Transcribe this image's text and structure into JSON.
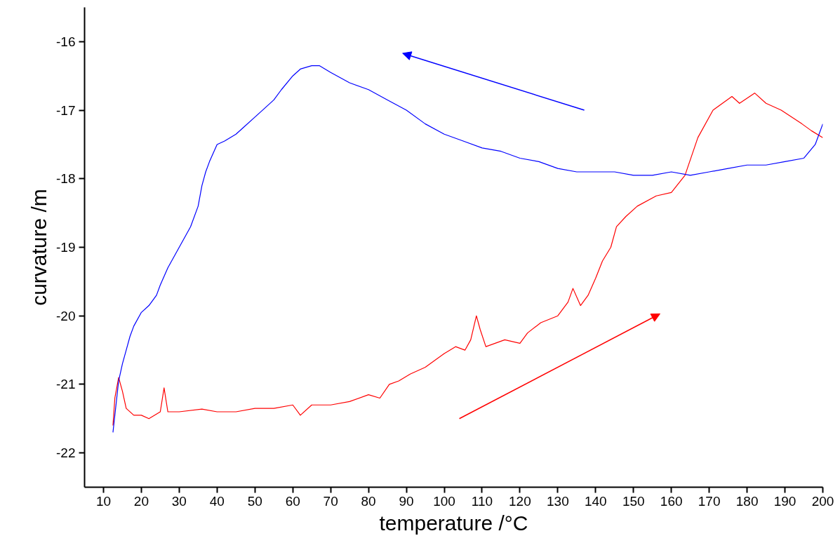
{
  "chart_data": {
    "type": "line",
    "xlabel": "temperature /°C",
    "ylabel": "curvature /m",
    "xlim": [
      5,
      200
    ],
    "ylim": [
      -22.5,
      -15.5
    ],
    "xticks": [
      10,
      20,
      30,
      40,
      50,
      60,
      70,
      80,
      90,
      100,
      110,
      120,
      130,
      140,
      150,
      160,
      170,
      180,
      190,
      200
    ],
    "yticks": [
      -16,
      -17,
      -18,
      -19,
      -20,
      -21,
      -22
    ],
    "grid": false,
    "marker": "none",
    "line_style": "solid",
    "series": [
      {
        "color": "#ff0000",
        "x": [
          12.5,
          13,
          14,
          15,
          16,
          18,
          20,
          22,
          25,
          26,
          27,
          30,
          36,
          40,
          45,
          50,
          55,
          60,
          62,
          65,
          70,
          75,
          80,
          83,
          85.5,
          88,
          91,
          95,
          100,
          103,
          105.5,
          107,
          108.5,
          109.5,
          111,
          116,
          120,
          122,
          125.5,
          130,
          132.7,
          134,
          136,
          138,
          140,
          141.8,
          144,
          145.5,
          148,
          151,
          156,
          160,
          163.6,
          167,
          171,
          176,
          178,
          182,
          185,
          189,
          194.5,
          197,
          200
        ],
        "values": [
          -21.6,
          -21.2,
          -20.9,
          -21.1,
          -21.35,
          -21.45,
          -21.45,
          -21.5,
          -21.4,
          -21.05,
          -21.4,
          -21.4,
          -21.36,
          -21.4,
          -21.4,
          -21.35,
          -21.35,
          -21.3,
          -21.45,
          -21.3,
          -21.3,
          -21.25,
          -21.15,
          -21.2,
          -21.0,
          -20.95,
          -20.85,
          -20.75,
          -20.55,
          -20.45,
          -20.5,
          -20.35,
          -20.0,
          -20.2,
          -20.45,
          -20.35,
          -20.4,
          -20.25,
          -20.1,
          -20.0,
          -19.8,
          -19.6,
          -19.85,
          -19.7,
          -19.45,
          -19.2,
          -19.0,
          -18.7,
          -18.55,
          -18.4,
          -18.25,
          -18.2,
          -17.95,
          -17.4,
          -17.0,
          -16.8,
          -16.9,
          -16.75,
          -16.9,
          -17.0,
          -17.2,
          -17.3,
          -17.4
        ]
      },
      {
        "color": "#0000ff",
        "x": [
          200,
          198,
          195,
          190,
          185,
          180,
          175,
          170,
          165,
          160,
          155,
          150,
          145,
          140,
          135,
          130,
          125,
          120,
          115,
          110,
          105,
          100,
          95,
          90,
          85,
          80,
          75,
          70,
          67,
          65,
          62,
          60,
          57,
          55,
          52,
          50,
          47,
          45,
          42,
          40,
          38,
          37,
          36,
          35,
          33,
          30,
          28,
          27,
          25,
          24,
          22,
          20,
          18,
          17,
          16,
          15,
          14,
          13.5,
          13,
          12.5
        ],
        "values": [
          -17.2,
          -17.5,
          -17.7,
          -17.75,
          -17.8,
          -17.8,
          -17.85,
          -17.9,
          -17.95,
          -17.9,
          -17.95,
          -17.95,
          -17.9,
          -17.9,
          -17.9,
          -17.85,
          -17.75,
          -17.7,
          -17.6,
          -17.55,
          -17.45,
          -17.35,
          -17.2,
          -17.0,
          -16.85,
          -16.7,
          -16.6,
          -16.45,
          -16.35,
          -16.35,
          -16.4,
          -16.5,
          -16.7,
          -16.85,
          -17.0,
          -17.1,
          -17.25,
          -17.35,
          -17.45,
          -17.5,
          -17.75,
          -17.9,
          -18.1,
          -18.4,
          -18.7,
          -19.0,
          -19.2,
          -19.3,
          -19.55,
          -19.7,
          -19.85,
          -19.95,
          -20.15,
          -20.3,
          -20.5,
          -20.7,
          -20.95,
          -21.2,
          -21.45,
          -21.7
        ]
      }
    ]
  }
}
